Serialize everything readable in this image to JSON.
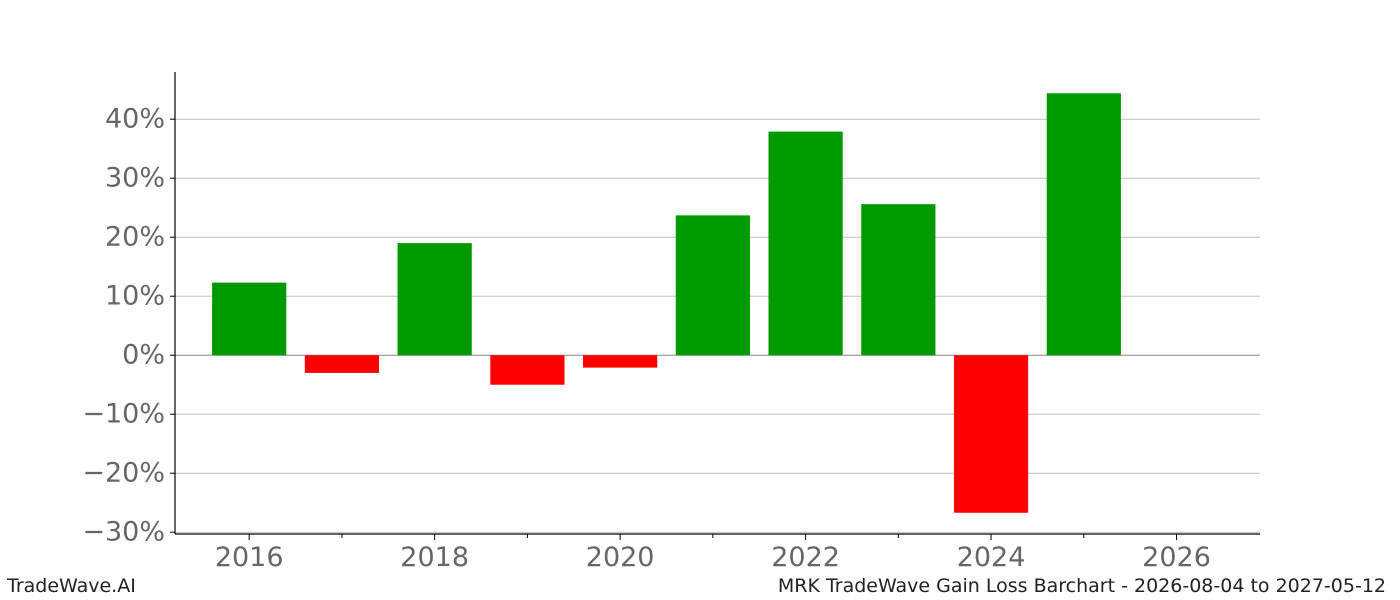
{
  "footer": {
    "brand": "TradeWave.AI",
    "caption": "MRK TradeWave Gain Loss Barchart - 2026-08-04 to 2027-05-12"
  },
  "colors": {
    "gain": "#009900",
    "loss": "#ff0000",
    "grid": "#c0c0c0",
    "zero_line": "#888888",
    "axis": "#000000",
    "tick_text": "#666666"
  },
  "chart_data": {
    "type": "bar",
    "title": "",
    "xlabel": "",
    "ylabel": "",
    "x": [
      2016,
      2017,
      2018,
      2019,
      2020,
      2021,
      2022,
      2023,
      2024,
      2025
    ],
    "values": [
      12.3,
      -3.0,
      19.0,
      -5.0,
      -2.1,
      23.7,
      37.9,
      25.6,
      -26.7,
      44.4
    ],
    "xlim": [
      2015.2,
      2026.9
    ],
    "ylim": [
      -30.3,
      48
    ],
    "x_ticks_major": [
      2016,
      2018,
      2020,
      2022,
      2024,
      2026
    ],
    "x_ticks_minor": [
      2017,
      2019,
      2021,
      2023,
      2025
    ],
    "x_tick_labels": [
      "2016",
      "2018",
      "2020",
      "2022",
      "2024",
      "2026"
    ],
    "y_ticks": [
      40,
      30,
      20,
      10,
      0,
      -10,
      -20,
      -30
    ],
    "y_tick_labels": [
      "40%",
      "30%",
      "20%",
      "10%",
      "0%",
      "−10%",
      "−20%",
      "−30%"
    ],
    "grid": "horizontal",
    "legend": "none"
  }
}
